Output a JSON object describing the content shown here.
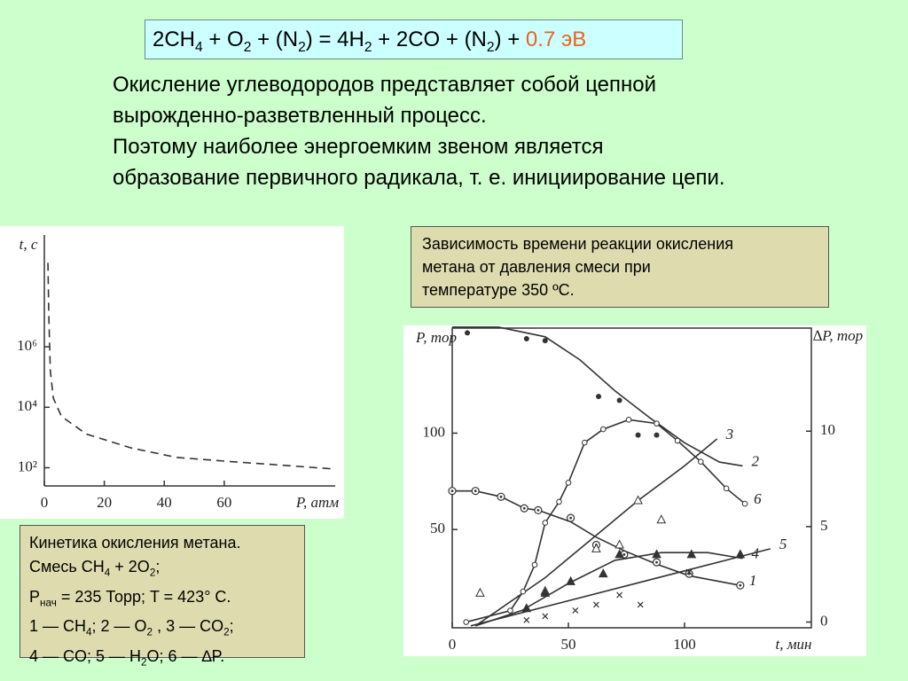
{
  "formula": {
    "parts": [
      "2CH",
      "4",
      " + O",
      "2",
      " + (N",
      "2",
      ") = 4H",
      "2",
      " + 2CO + (N",
      "2",
      ") + "
    ],
    "energy": "0.7 эВ"
  },
  "paragraph": [
    "Окисление углеводородов представляет собой цепной",
    "вырожденно-разветвленный процесс.",
    "Поэтому наиболее энергоемким звеном является",
    "образование первичного радикала, т. е. инициирование цепи."
  ],
  "caption_right": [
    "Зависимость времени реакции окисления",
    "метана от давления смеси при",
    "температуре 350 ºС."
  ],
  "caption_left": [
    [
      "Кинетика окисления метана."
    ],
    [
      "Смесь CH",
      "4",
      " + 2O",
      "2",
      ";"
    ],
    [
      "P",
      "нач",
      " = 235 Торр; T = 423° C."
    ],
    [
      "1 — CH",
      "4",
      "; 2 — O",
      "2",
      " , 3 — CO",
      "2",
      ";"
    ],
    [
      "4 — CO; 5 — H",
      "2",
      "O; 6 — ∆P."
    ]
  ],
  "chart_data": [
    {
      "type": "line",
      "xlabel": "P, атм",
      "ylabel": "t, с",
      "log_y": true,
      "frame": false,
      "xlim": [
        0,
        97
      ],
      "ylim": [
        25,
        5000000000
      ],
      "xticks": [
        0,
        20,
        40,
        60
      ],
      "yticks": [
        {
          "value": 100,
          "label": "10²"
        },
        {
          "value": 10000,
          "label": "10⁴"
        },
        {
          "value": 1000000,
          "label": "10⁶"
        }
      ],
      "series": [
        {
          "color": "#333333",
          "dashed": true,
          "x": [
            1.2,
            1.5,
            2,
            3,
            5.7,
            14,
            29,
            44,
            62,
            80,
            97
          ],
          "values": [
            600000000,
            10000000,
            160000,
            20000,
            5000,
            1300,
            450,
            220,
            160,
            120,
            90
          ]
        }
      ]
    },
    {
      "type": "line",
      "xlabel": "t, мин",
      "ylabel": "P, тор",
      "y2label": "∆P, тор",
      "frame": true,
      "xlim": [
        0,
        154.6
      ],
      "ylim": [
        -1,
        154.5
      ],
      "y2lim": [
        -0.3,
        15.4
      ],
      "xticks": [
        0,
        50,
        100
      ],
      "yticks": [
        50,
        100
      ],
      "y2ticks": [
        0,
        5,
        10
      ],
      "series": [
        {
          "name": "1",
          "color": "#333333",
          "marker": "circle-dot",
          "x": [
            0,
            10,
            21,
            31,
            37,
            51,
            62,
            74,
            88,
            102,
            124
          ],
          "values": [
            70,
            70,
            67,
            61,
            60,
            56,
            42,
            37,
            33,
            27,
            21
          ],
          "fit_x": [
            0,
            10,
            21,
            31,
            37,
            51,
            62,
            74,
            88,
            102,
            124
          ],
          "fit_values": [
            70,
            70,
            67,
            61,
            60,
            54,
            46,
            39,
            32,
            26,
            21
          ]
        },
        {
          "name": "2",
          "color": "#333333",
          "marker": "dot",
          "x": [
            6.5,
            32,
            40,
            63,
            72,
            80,
            88
          ],
          "values": [
            152,
            149,
            148,
            119,
            117,
            99,
            99
          ],
          "fit_x": [
            0,
            20,
            40,
            55,
            70,
            85,
            100,
            115,
            125
          ],
          "fit_values": [
            155,
            155,
            150,
            138,
            122,
            108,
            95,
            85,
            83
          ]
        },
        {
          "name": "3",
          "color": "#333333",
          "marker": "triangle",
          "x": [
            12,
            40,
            62,
            72,
            80,
            90
          ],
          "values": [
            17,
            18,
            40,
            42,
            65,
            55
          ],
          "fit_x": [
            10,
            40,
            60,
            80,
            100,
            114
          ],
          "fit_values": [
            0,
            25,
            45,
            65,
            83,
            97
          ]
        },
        {
          "name": "4",
          "color": "#333333",
          "marker": "triangle-filled",
          "x": [
            32,
            40,
            51,
            65,
            72,
            88,
            103,
            124
          ],
          "values": [
            9,
            17,
            23,
            27,
            37,
            37,
            37,
            37
          ],
          "fit_x": [
            10,
            30,
            50,
            70,
            90,
            110,
            125
          ],
          "fit_values": [
            0,
            8,
            22,
            34,
            38,
            38,
            35
          ]
        },
        {
          "name": "5",
          "color": "#333333",
          "marker": "cross",
          "x": [
            32,
            40,
            53,
            62,
            72,
            81,
            102
          ],
          "values": [
            3,
            5,
            8,
            11,
            16,
            11,
            28
          ],
          "fit_x": [
            8,
            137
          ],
          "fit_values": [
            0,
            40
          ]
        },
        {
          "name": "6",
          "color": "#333333",
          "marker": "circle",
          "axis": "y2",
          "x": [
            6,
            25,
            30.5,
            35.5,
            40,
            46,
            50,
            57,
            65,
            76,
            88,
            97,
            107,
            118,
            126
          ],
          "values": [
            0,
            0.6,
            1.6,
            3,
            5.2,
            6.3,
            7.3,
            9.4,
            10.1,
            10.6,
            10.4,
            9.5,
            8.4,
            7,
            6.2
          ],
          "fit_x": [
            6,
            25,
            30.5,
            35.5,
            40,
            46,
            50,
            57,
            65,
            76,
            88,
            97,
            107,
            118,
            126
          ],
          "fit_values": [
            0,
            0.6,
            1.6,
            3,
            5.2,
            6.3,
            7.3,
            9.4,
            10.1,
            10.6,
            10.4,
            9.5,
            8.4,
            7,
            6.2
          ]
        }
      ]
    }
  ]
}
